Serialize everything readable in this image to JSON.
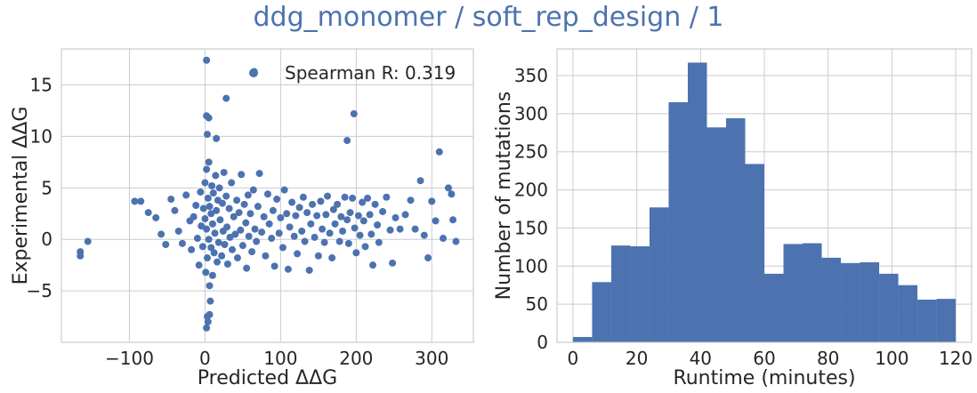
{
  "suptitle": "ddg_monomer / soft_rep_design / 1",
  "colors": {
    "series": "#4c72b0",
    "grid": "#cccccc",
    "frame": "#cccccc",
    "text": "#262626"
  },
  "chart_data": [
    {
      "type": "scatter",
      "title": "",
      "xlabel": "Predicted ΔΔG",
      "ylabel": "Experimental ΔΔG",
      "xlim": [
        -190,
        355
      ],
      "ylim": [
        -10,
        18.5
      ],
      "xticks": [
        -100,
        0,
        100,
        200,
        300
      ],
      "xtick_labels": [
        "−100",
        "0",
        "100",
        "200",
        "300"
      ],
      "yticks": [
        -5,
        0,
        5,
        10,
        15
      ],
      "ytick_labels": [
        "−5",
        "0",
        "5",
        "10",
        "15"
      ],
      "grid": true,
      "legend": {
        "label": "Spearman R: 0.319",
        "placement": "top-right"
      },
      "series": [
        {
          "name": "Spearman R: 0.319",
          "points": [
            [
              2,
              17.4
            ],
            [
              65,
              16.3
            ],
            [
              28,
              13.7
            ],
            [
              2,
              12
            ],
            [
              5,
              11.8
            ],
            [
              197,
              12.2
            ],
            [
              3,
              10.2
            ],
            [
              15,
              9.8
            ],
            [
              188,
              9.6
            ],
            [
              310,
              8.5
            ],
            [
              -165,
              -1.2
            ],
            [
              -165,
              -1.6
            ],
            [
              -155,
              -0.2
            ],
            [
              -93,
              3.7
            ],
            [
              -85,
              3.7
            ],
            [
              -75,
              2.6
            ],
            [
              -65,
              2.1
            ],
            [
              -58,
              0.5
            ],
            [
              -52,
              -0.5
            ],
            [
              -45,
              3.9
            ],
            [
              -40,
              2.8
            ],
            [
              -35,
              0.8
            ],
            [
              -30,
              -0.4
            ],
            [
              -25,
              4.3
            ],
            [
              -20,
              1.8
            ],
            [
              -18,
              -1
            ],
            [
              -15,
              2.2
            ],
            [
              -12,
              3.3
            ],
            [
              -10,
              0.1
            ],
            [
              -8,
              -2.5
            ],
            [
              -6,
              4.6
            ],
            [
              -5,
              1.3
            ],
            [
              -3,
              -0.7
            ],
            [
              -2,
              3
            ],
            [
              0,
              5.5
            ],
            [
              0,
              2
            ],
            [
              1,
              -3.2
            ],
            [
              2,
              6.8
            ],
            [
              2,
              1
            ],
            [
              3,
              -1.8
            ],
            [
              4,
              4
            ],
            [
              5,
              7.5
            ],
            [
              5,
              0
            ],
            [
              6,
              -4.5
            ],
            [
              6,
              3.2
            ],
            [
              7,
              -6
            ],
            [
              8,
              2.5
            ],
            [
              8,
              -0.8
            ],
            [
              9,
              5.2
            ],
            [
              10,
              1.5
            ],
            [
              3,
              -7.5
            ],
            [
              4,
              -8
            ],
            [
              2,
              -8.6
            ],
            [
              6,
              -7.3
            ],
            [
              10,
              -3.5
            ],
            [
              11,
              4.5
            ],
            [
              12,
              -1.3
            ],
            [
              13,
              0.6
            ],
            [
              14,
              6.2
            ],
            [
              15,
              2.8
            ],
            [
              16,
              -2.2
            ],
            [
              17,
              3.8
            ],
            [
              18,
              -0.3
            ],
            [
              19,
              5
            ],
            [
              20,
              1.9
            ],
            [
              22,
              -1.6
            ],
            [
              23,
              3.5
            ],
            [
              24,
              0.8
            ],
            [
              25,
              6.5
            ],
            [
              26,
              -0.5
            ],
            [
              28,
              4.2
            ],
            [
              29,
              1.2
            ],
            [
              30,
              -2.4
            ],
            [
              32,
              3
            ],
            [
              33,
              0.2
            ],
            [
              35,
              5.5
            ],
            [
              36,
              -1
            ],
            [
              38,
              2.2
            ],
            [
              40,
              0.5
            ],
            [
              42,
              3.8
            ],
            [
              43,
              -1.8
            ],
            [
              45,
              2.6
            ],
            [
              47,
              0.9
            ],
            [
              48,
              6.3
            ],
            [
              50,
              -0.6
            ],
            [
              52,
              3.4
            ],
            [
              54,
              1.6
            ],
            [
              55,
              -2.8
            ],
            [
              57,
              4.3
            ],
            [
              58,
              0.3
            ],
            [
              60,
              2.5
            ],
            [
              62,
              -1.2
            ],
            [
              64,
              4.8
            ],
            [
              66,
              1
            ],
            [
              68,
              -0.2
            ],
            [
              70,
              3.2
            ],
            [
              72,
              6.4
            ],
            [
              75,
              0.7
            ],
            [
              78,
              2.2
            ],
            [
              80,
              -1.6
            ],
            [
              83,
              4.4
            ],
            [
              85,
              1.5
            ],
            [
              88,
              0.1
            ],
            [
              90,
              2.8
            ],
            [
              92,
              -2.6
            ],
            [
              95,
              3.9
            ],
            [
              98,
              0.6
            ],
            [
              100,
              2.1
            ],
            [
              103,
              -0.8
            ],
            [
              105,
              4.8
            ],
            [
              108,
              2.5
            ],
            [
              110,
              -2.9
            ],
            [
              112,
              1.2
            ],
            [
              115,
              3.6
            ],
            [
              118,
              0.3
            ],
            [
              120,
              2.3
            ],
            [
              122,
              -1.4
            ],
            [
              125,
              3.1
            ],
            [
              128,
              0.8
            ],
            [
              130,
              4.1
            ],
            [
              132,
              -0.2
            ],
            [
              135,
              2.6
            ],
            [
              138,
              -3
            ],
            [
              140,
              1.5
            ],
            [
              142,
              3.4
            ],
            [
              145,
              0.2
            ],
            [
              148,
              2.3
            ],
            [
              150,
              -1.6
            ],
            [
              153,
              3.7
            ],
            [
              155,
              1
            ],
            [
              158,
              -0.3
            ],
            [
              160,
              2.4
            ],
            [
              162,
              4.2
            ],
            [
              165,
              0.6
            ],
            [
              168,
              -1.8
            ],
            [
              170,
              2.9
            ],
            [
              172,
              1.5
            ],
            [
              175,
              3.4
            ],
            [
              178,
              -0.2
            ],
            [
              180,
              2.2
            ],
            [
              182,
              0.8
            ],
            [
              185,
              4.1
            ],
            [
              188,
              1.9
            ],
            [
              190,
              -0.4
            ],
            [
              192,
              2.6
            ],
            [
              195,
              4
            ],
            [
              198,
              1.1
            ],
            [
              200,
              -1.3
            ],
            [
              203,
              2.3
            ],
            [
              205,
              0.4
            ],
            [
              208,
              3.6
            ],
            [
              210,
              1.8
            ],
            [
              212,
              -0.7
            ],
            [
              215,
              4
            ],
            [
              218,
              2.4
            ],
            [
              220,
              0.5
            ],
            [
              222,
              -2.5
            ],
            [
              225,
              3.4
            ],
            [
              228,
              1.4
            ],
            [
              230,
              -0.3
            ],
            [
              235,
              2.7
            ],
            [
              240,
              4.1
            ],
            [
              245,
              0.9
            ],
            [
              248,
              -2.3
            ],
            [
              252,
              2.1
            ],
            [
              258,
              1
            ],
            [
              265,
              2.4
            ],
            [
              272,
              3.8
            ],
            [
              278,
              1
            ],
            [
              285,
              5.7
            ],
            [
              290,
              0.4
            ],
            [
              295,
              -1.8
            ],
            [
              300,
              3.7
            ],
            [
              305,
              1.8
            ],
            [
              315,
              0.1
            ],
            [
              322,
              5
            ],
            [
              326,
              4.4
            ],
            [
              328,
              1.9
            ],
            [
              332,
              -0.2
            ]
          ]
        }
      ]
    },
    {
      "type": "bar",
      "title": "",
      "xlabel": "Runtime (minutes)",
      "ylabel": "Number of mutations",
      "xlim": [
        -5,
        125
      ],
      "ylim": [
        0,
        385
      ],
      "xticks": [
        0,
        20,
        40,
        60,
        80,
        100,
        120
      ],
      "xtick_labels": [
        "0",
        "20",
        "40",
        "60",
        "80",
        "100",
        "120"
      ],
      "yticks": [
        0,
        50,
        100,
        150,
        200,
        250,
        300,
        350
      ],
      "ytick_labels": [
        "0",
        "50",
        "100",
        "150",
        "200",
        "250",
        "300",
        "350"
      ],
      "grid": true,
      "bin_edges": [
        0,
        6,
        12,
        18,
        24,
        30,
        36,
        42,
        48,
        54,
        60,
        66,
        72,
        78,
        84,
        90,
        96,
        102,
        108,
        114,
        120
      ],
      "values": [
        7,
        79,
        127,
        126,
        177,
        315,
        367,
        282,
        294,
        234,
        90,
        129,
        130,
        111,
        104,
        105,
        90,
        75,
        56,
        57
      ]
    }
  ]
}
